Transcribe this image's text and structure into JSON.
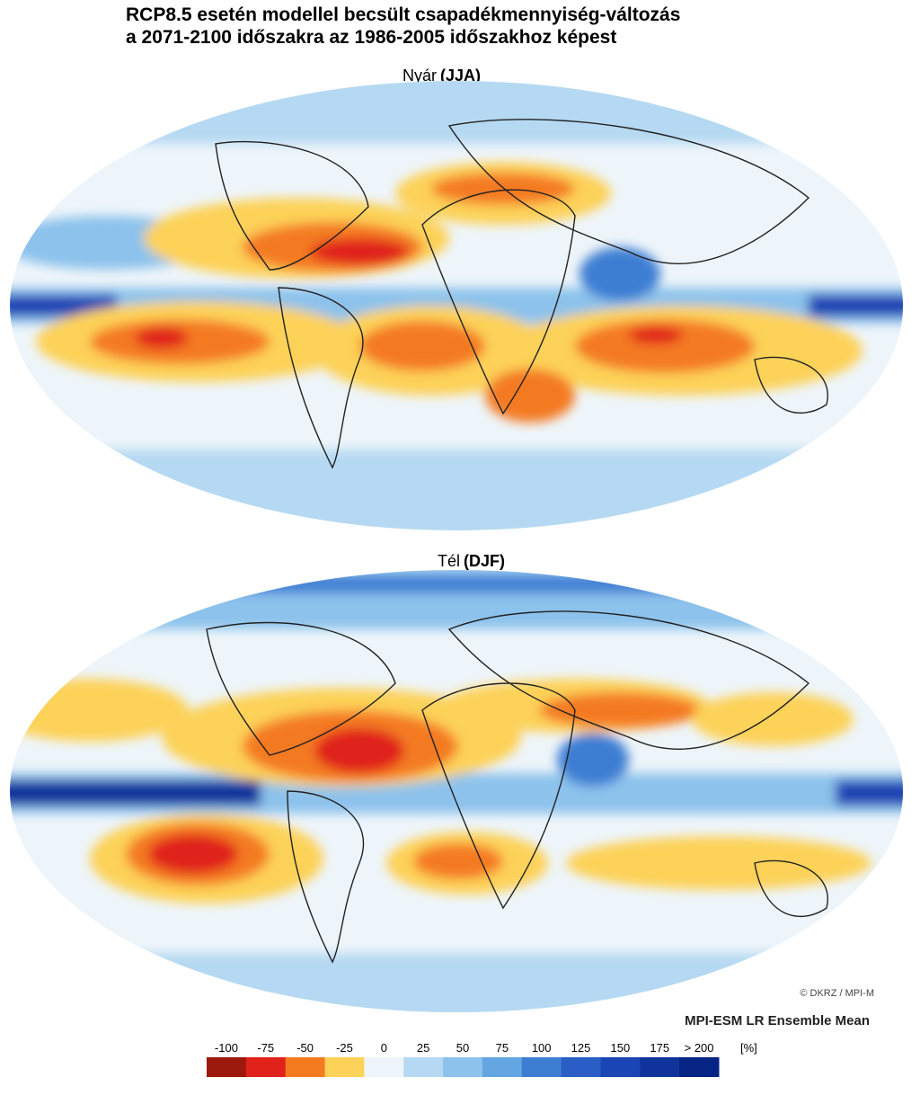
{
  "header": {
    "title_lines": [
      "RCP8.5  esetén  modellel becsült csapadékmennyiség-változás",
      "a 2071-2100 időszakra az 1986-2005 időszakhoz képest"
    ]
  },
  "panels": [
    {
      "title": "Nyár",
      "code": "(JJA)"
    },
    {
      "title": "Tél",
      "code": "(DJF)"
    }
  ],
  "credit": "© DKRZ / MPI-M",
  "model": "MPI-ESM LR Ensemble Mean",
  "colorbar": {
    "labels": [
      "-100",
      "-75",
      "-50",
      "-25",
      "0",
      "25",
      "50",
      "75",
      "100",
      "125",
      "150",
      "175",
      "> 200"
    ],
    "unit": "[%]",
    "colors": [
      "#9c1a0c",
      "#e0221b",
      "#f47a20",
      "#fdd258",
      "#eef5fa",
      "#b5d9f2",
      "#8cc2ec",
      "#63a6e2",
      "#3d7ed3",
      "#2a5ec6",
      "#1a45b4",
      "#10349c",
      "#062484"
    ]
  }
}
